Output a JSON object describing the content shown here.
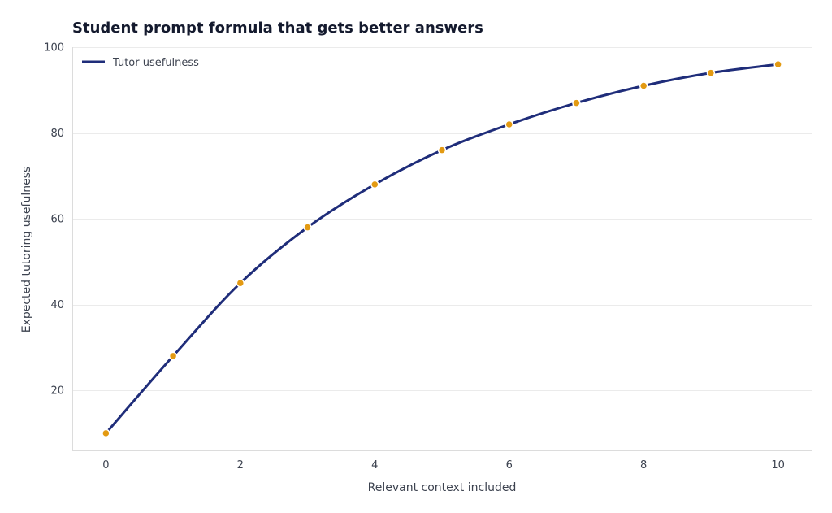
{
  "chart_data": {
    "type": "line",
    "title": "Student prompt formula that gets better answers",
    "xlabel": "Relevant context included",
    "ylabel": "Expected tutoring usefulness",
    "x": [
      0,
      1,
      2,
      3,
      4,
      5,
      6,
      7,
      8,
      9,
      10
    ],
    "series": [
      {
        "name": "Tutor usefulness",
        "values": [
          10,
          28,
          45,
          58,
          68,
          76,
          82,
          87,
          91,
          94,
          96
        ],
        "line_color": "#1f2d7a",
        "marker_color": "#e39a12"
      }
    ],
    "xlim": [
      -0.5,
      10.5
    ],
    "ylim": [
      6,
      100
    ],
    "xticks": [
      0,
      2,
      4,
      6,
      8,
      10
    ],
    "yticks": [
      20,
      40,
      60,
      80,
      100
    ],
    "grid": "horizontal",
    "legend_position": "top-left"
  }
}
